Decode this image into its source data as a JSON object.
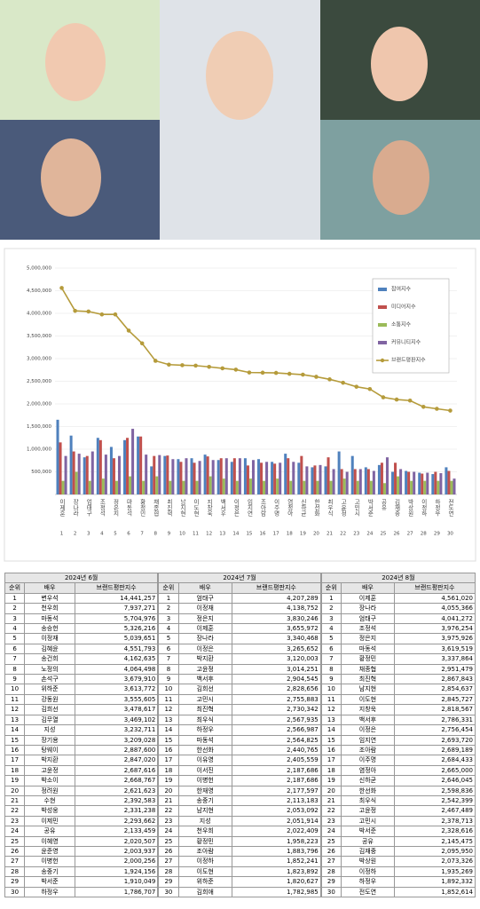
{
  "chart_data": {
    "type": "bar_line",
    "categories": [
      "이제훈",
      "장나라",
      "엄태구",
      "조정석",
      "정은지",
      "마동석",
      "황정민",
      "채종협",
      "최진혁",
      "남지현",
      "이도현",
      "지창욱",
      "백서후",
      "이정은",
      "임지연",
      "조아람",
      "이주명",
      "염정아",
      "신하균",
      "한선화",
      "최우식",
      "고윤정",
      "고민시",
      "박서준",
      "공유",
      "김재중",
      "박상원",
      "이정하",
      "하정우",
      "전도연"
    ],
    "category_numbers": [
      1,
      2,
      3,
      4,
      5,
      6,
      7,
      8,
      9,
      10,
      11,
      12,
      13,
      14,
      15,
      16,
      17,
      18,
      19,
      20,
      21,
      22,
      23,
      24,
      25,
      26,
      27,
      28,
      29,
      30
    ],
    "ylim": [
      0,
      5000000
    ],
    "yticks": [
      {
        "value": 500000,
        "label": "500,000"
      },
      {
        "value": 1000000,
        "label": "1,000,000"
      },
      {
        "value": 1500000,
        "label": "1,500,000"
      },
      {
        "value": 2000000,
        "label": "2,000,000"
      },
      {
        "value": 2500000,
        "label": "2,500,000"
      },
      {
        "value": 3000000,
        "label": "3,000,000"
      },
      {
        "value": 3500000,
        "label": "3,500,000"
      },
      {
        "value": 4000000,
        "label": "4,000,000"
      },
      {
        "value": 4500000,
        "label": "4,500,000"
      },
      {
        "value": 5000000,
        "label": "5,000,000"
      }
    ],
    "grid": true,
    "legend": "upper right",
    "series": [
      {
        "name": "참여지수",
        "color": "#4f81bd",
        "kind": "bar",
        "values": [
          1650000,
          1300000,
          820000,
          1250000,
          1050000,
          1200000,
          1280000,
          620000,
          850000,
          780000,
          800000,
          880000,
          760000,
          720000,
          800000,
          780000,
          720000,
          900000,
          700000,
          600000,
          620000,
          950000,
          850000,
          600000,
          650000,
          500000,
          520000,
          480000,
          450000,
          600000
        ]
      },
      {
        "name": "미디어지수",
        "color": "#c0504d",
        "kind": "bar",
        "values": [
          1150000,
          950000,
          850000,
          1200000,
          800000,
          1250000,
          1280000,
          850000,
          860000,
          720000,
          700000,
          840000,
          800000,
          800000,
          640000,
          700000,
          680000,
          800000,
          850000,
          640000,
          820000,
          560000,
          560000,
          560000,
          700000,
          700000,
          500000,
          460000,
          500000,
          520000
        ]
      },
      {
        "name": "소통지수",
        "color": "#9bbb59",
        "kind": "bar",
        "values": [
          300000,
          500000,
          300000,
          350000,
          300000,
          400000,
          300000,
          400000,
          300000,
          300000,
          300000,
          400000,
          350000,
          300000,
          350000,
          300000,
          350000,
          300000,
          300000,
          300000,
          300000,
          350000,
          300000,
          300000,
          250000,
          400000,
          300000,
          300000,
          300000,
          300000
        ]
      },
      {
        "name": "커뮤니티지수",
        "color": "#8064a2",
        "kind": "bar",
        "values": [
          850000,
          900000,
          950000,
          880000,
          850000,
          1450000,
          880000,
          870000,
          780000,
          800000,
          740000,
          760000,
          800000,
          800000,
          760000,
          720000,
          700000,
          720000,
          620000,
          650000,
          560000,
          500000,
          560000,
          520000,
          820000,
          560000,
          500000,
          480000,
          470000,
          350000
        ]
      },
      {
        "name": "브랜드평판지수",
        "color": "#b59b3b",
        "kind": "line",
        "values": [
          4561020,
          4055366,
          4041272,
          3976254,
          3975926,
          3619519,
          3337864,
          2951479,
          2867843,
          2854637,
          2845727,
          2818567,
          2786331,
          2756454,
          2693720,
          2689189,
          2684433,
          2665000,
          2646045,
          2598836,
          2542399,
          2467489,
          2378713,
          2328616,
          2145475,
          2095950,
          2073326,
          1935269,
          1892332,
          1852614
        ]
      }
    ]
  },
  "table": {
    "columns": [
      "순위",
      "배우",
      "브랜드평판지수"
    ],
    "blocks": [
      {
        "title": "2024년 6월",
        "rows": [
          [
            1,
            "변우석",
            "14,441,257"
          ],
          [
            2,
            "천우희",
            "7,937,271"
          ],
          [
            3,
            "마동석",
            "5,704,976"
          ],
          [
            4,
            "송승헌",
            "5,326,216"
          ],
          [
            5,
            "이정재",
            "5,039,651"
          ],
          [
            6,
            "김혜윤",
            "4,551,793"
          ],
          [
            7,
            "송건희",
            "4,162,635"
          ],
          [
            8,
            "노정의",
            "4,064,498"
          ],
          [
            9,
            "손석구",
            "3,679,910"
          ],
          [
            10,
            "위하준",
            "3,613,772"
          ],
          [
            11,
            "강동원",
            "3,555,605"
          ],
          [
            12,
            "김희선",
            "3,478,617"
          ],
          [
            13,
            "김무열",
            "3,469,102"
          ],
          [
            14,
            "지성",
            "3,232,711"
          ],
          [
            15,
            "장기용",
            "3,209,028"
          ],
          [
            16,
            "탕웨이",
            "2,887,600"
          ],
          [
            17,
            "박지환",
            "2,847,020"
          ],
          [
            18,
            "고윤정",
            "2,687,616"
          ],
          [
            19,
            "박소이",
            "2,668,767"
          ],
          [
            20,
            "정려원",
            "2,621,623"
          ],
          [
            21,
            "수현",
            "2,392,583"
          ],
          [
            22,
            "박성웅",
            "2,331,238"
          ],
          [
            23,
            "이제민",
            "2,293,662"
          ],
          [
            24,
            "공유",
            "2,133,459"
          ],
          [
            25,
            "이혜영",
            "2,020,507"
          ],
          [
            26,
            "윤준영",
            "2,003,937"
          ],
          [
            27,
            "이병헌",
            "2,000,256"
          ],
          [
            28,
            "송중기",
            "1,924,156"
          ],
          [
            29,
            "박서준",
            "1,910,049"
          ],
          [
            30,
            "하정우",
            "1,786,707"
          ]
        ]
      },
      {
        "title": "2024년 7월",
        "rows": [
          [
            1,
            "엄태구",
            "4,207,289"
          ],
          [
            2,
            "이정재",
            "4,138,752"
          ],
          [
            3,
            "정은지",
            "3,830,246"
          ],
          [
            4,
            "이제훈",
            "3,655,972"
          ],
          [
            5,
            "장나라",
            "3,340,468"
          ],
          [
            6,
            "이정은",
            "3,265,652"
          ],
          [
            7,
            "박지환",
            "3,120,003"
          ],
          [
            8,
            "고윤정",
            "3,014,251"
          ],
          [
            9,
            "백서후",
            "2,904,545"
          ],
          [
            10,
            "김희선",
            "2,828,656"
          ],
          [
            11,
            "고민시",
            "2,755,883"
          ],
          [
            12,
            "최진혁",
            "2,730,342"
          ],
          [
            13,
            "최우식",
            "2,567,935"
          ],
          [
            14,
            "하정우",
            "2,566,987"
          ],
          [
            15,
            "마동석",
            "2,564,825"
          ],
          [
            16,
            "한선화",
            "2,440,765"
          ],
          [
            17,
            "이유영",
            "2,405,559"
          ],
          [
            18,
            "이서진",
            "2,187,686"
          ],
          [
            19,
            "이병헌",
            "2,187,686"
          ],
          [
            20,
            "한재영",
            "2,177,597"
          ],
          [
            21,
            "송중기",
            "2,113,183"
          ],
          [
            22,
            "남지현",
            "2,053,092"
          ],
          [
            23,
            "지성",
            "2,051,914"
          ],
          [
            24,
            "천우희",
            "2,022,409"
          ],
          [
            25,
            "황정민",
            "1,958,223"
          ],
          [
            26,
            "조아람",
            "1,883,796"
          ],
          [
            27,
            "이정하",
            "1,852,241"
          ],
          [
            28,
            "이도현",
            "1,823,892"
          ],
          [
            29,
            "위하준",
            "1,820,627"
          ],
          [
            30,
            "김희애",
            "1,782,985"
          ]
        ]
      },
      {
        "title": "2024년 8월",
        "rows": [
          [
            1,
            "이제훈",
            "4,561,020"
          ],
          [
            2,
            "장나라",
            "4,055,366"
          ],
          [
            3,
            "엄태구",
            "4,041,272"
          ],
          [
            4,
            "조정석",
            "3,976,254"
          ],
          [
            5,
            "정은지",
            "3,975,926"
          ],
          [
            6,
            "마동석",
            "3,619,519"
          ],
          [
            7,
            "황정민",
            "3,337,864"
          ],
          [
            8,
            "채종협",
            "2,951,479"
          ],
          [
            9,
            "최진혁",
            "2,867,843"
          ],
          [
            10,
            "남지현",
            "2,854,637"
          ],
          [
            11,
            "이도현",
            "2,845,727"
          ],
          [
            12,
            "지창욱",
            "2,818,567"
          ],
          [
            13,
            "백서후",
            "2,786,331"
          ],
          [
            14,
            "이정은",
            "2,756,454"
          ],
          [
            15,
            "임지연",
            "2,693,720"
          ],
          [
            16,
            "조아람",
            "2,689,189"
          ],
          [
            17,
            "이주명",
            "2,684,433"
          ],
          [
            18,
            "염정아",
            "2,665,000"
          ],
          [
            19,
            "신하균",
            "2,646,045"
          ],
          [
            20,
            "한선화",
            "2,598,836"
          ],
          [
            21,
            "최우식",
            "2,542,399"
          ],
          [
            22,
            "고윤정",
            "2,467,489"
          ],
          [
            23,
            "고민시",
            "2,378,713"
          ],
          [
            24,
            "박서준",
            "2,328,616"
          ],
          [
            25,
            "공유",
            "2,145,475"
          ],
          [
            26,
            "김재중",
            "2,095,950"
          ],
          [
            27,
            "박상원",
            "2,073,326"
          ],
          [
            28,
            "이정하",
            "1,935,269"
          ],
          [
            29,
            "하정우",
            "1,892,332"
          ],
          [
            30,
            "전도연",
            "1,852,614"
          ]
        ]
      }
    ]
  }
}
